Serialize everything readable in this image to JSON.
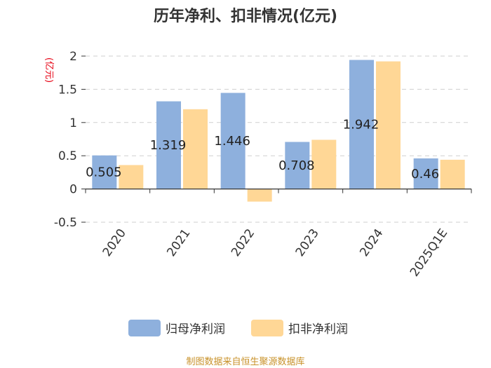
{
  "chart_data": {
    "type": "bar",
    "title": "历年净利、扣非情况(亿元)",
    "ylabel": "(亿元)",
    "xlabel": "",
    "categories": [
      "2020",
      "2021",
      "2022",
      "2023",
      "2024",
      "2025Q1E"
    ],
    "series": [
      {
        "name": "归母净利润",
        "values": [
          0.505,
          1.319,
          1.446,
          0.708,
          1.942,
          0.46
        ],
        "color": "#8eb0dd"
      },
      {
        "name": "扣非净利润",
        "values": [
          0.36,
          1.2,
          -0.19,
          0.74,
          1.92,
          0.44
        ],
        "color": "#ffd796"
      }
    ],
    "data_labels": [
      "0.505",
      "1.319",
      "1.446",
      "0.708",
      "1.942",
      "0.46"
    ],
    "ylim": [
      -0.5,
      2
    ],
    "yticks": [
      -0.5,
      0,
      0.5,
      1,
      1.5,
      2
    ],
    "ytick_labels": [
      "-0.5",
      "0",
      "0.5",
      "1",
      "1.5",
      "2"
    ],
    "grid": true,
    "legend_position": "bottom"
  },
  "source_text": "制图数据来自恒生聚源数据库"
}
